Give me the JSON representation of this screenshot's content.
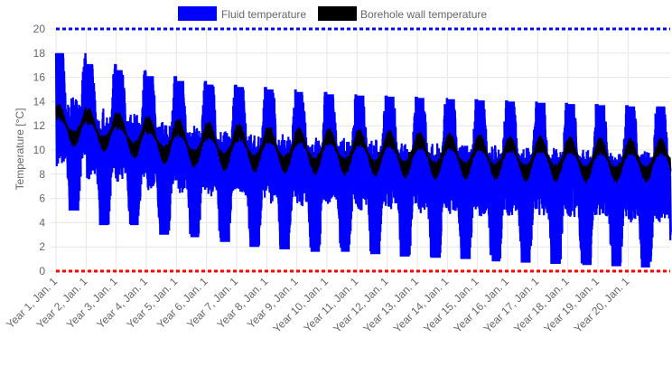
{
  "chart_data": {
    "type": "line",
    "ylabel": "Temperature [°C]",
    "ylim": [
      0,
      20
    ],
    "y_ticks": [
      0,
      2,
      4,
      6,
      8,
      10,
      12,
      14,
      16,
      18,
      20
    ],
    "grid": true,
    "legend_position": "top",
    "x_tick_labels": [
      "Year 1, Jan. 1",
      "Year 2, Jan. 1",
      "Year 3, Jan. 1",
      "Year 4, Jan. 1",
      "Year 5, Jan. 1",
      "Year 6, Jan. 1",
      "Year 7, Jan. 1",
      "Year 8, Jan. 1",
      "Year 9, Jan. 1",
      "Year 10, Jan. 1",
      "Year 11, Jan. 1",
      "Year 12, Jan. 1",
      "Year 13, Jan. 1",
      "Year 14, Jan. 1",
      "Year 15, Jan. 1",
      "Year 16, Jan. 1",
      "Year 17, Jan. 1",
      "Year 18, Jan. 1",
      "Year 19, Jan. 1",
      "Year 20, Jan. 1"
    ],
    "series": [
      {
        "name": "Fluid temperature",
        "color": "#0000ff",
        "annual_peak_max": [
          18.0,
          17.1,
          16.6,
          16.1,
          15.7,
          15.4,
          15.2,
          15.0,
          14.8,
          14.6,
          14.5,
          14.4,
          14.3,
          14.2,
          14.1,
          14.0,
          13.9,
          13.8,
          13.7,
          13.6
        ],
        "annual_trough_min": [
          5.0,
          3.8,
          3.8,
          3.0,
          2.8,
          2.4,
          2.0,
          1.8,
          1.6,
          1.6,
          1.4,
          1.2,
          1.1,
          1.0,
          0.8,
          0.7,
          0.6,
          0.5,
          0.4,
          0.3
        ]
      },
      {
        "name": "Borehole wall temperature",
        "color": "#000000",
        "annual_peak_max": [
          14.1,
          13.7,
          13.4,
          13.1,
          12.9,
          12.7,
          12.5,
          12.3,
          12.2,
          12.1,
          12.0,
          11.9,
          11.8,
          11.7,
          11.6,
          11.5,
          11.5,
          11.4,
          11.3,
          11.3
        ],
        "annual_trough_min": [
          10.0,
          9.6,
          9.0,
          8.6,
          8.2,
          8.0,
          7.9,
          7.8,
          7.7,
          7.6,
          7.5,
          7.4,
          7.3,
          7.3,
          7.2,
          7.1,
          7.1,
          7.0,
          7.0,
          7.0
        ]
      }
    ],
    "reference_lines": [
      {
        "y": 20,
        "color": "#0000ff",
        "style": "dotted"
      },
      {
        "y": 0,
        "color": "#ff0000",
        "style": "dotted"
      }
    ]
  }
}
